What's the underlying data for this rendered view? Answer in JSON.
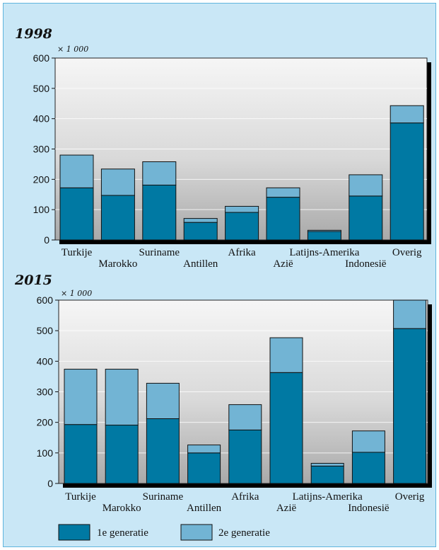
{
  "colors": {
    "first": "#0079a3",
    "second": "#72b4d4",
    "background": "#c9e7f6",
    "shadow": "#000000"
  },
  "legend": {
    "first_label": "1e generatie",
    "second_label": "2e generatie"
  },
  "chart_data": [
    {
      "type": "bar",
      "stacked": true,
      "title": "1998",
      "unit_label": "× 1 000",
      "ylim": [
        0,
        600
      ],
      "yticks": [
        0,
        100,
        200,
        300,
        400,
        500,
        600
      ],
      "categories": [
        "Turkije",
        "Marokko",
        "Suriname",
        "Antillen",
        "Afrika",
        "Azië",
        "Latijns-Amerika",
        "Indonesië",
        "Overig"
      ],
      "series": [
        {
          "name": "1e generatie",
          "values": [
            172,
            147,
            181,
            58,
            91,
            141,
            28,
            145,
            386
          ]
        },
        {
          "name": "2e generatie",
          "values": [
            108,
            87,
            77,
            13,
            20,
            31,
            4,
            70,
            57
          ]
        }
      ],
      "grid": true
    },
    {
      "type": "bar",
      "stacked": true,
      "title": "2015",
      "unit_label": "× 1 000",
      "ylim": [
        0,
        600
      ],
      "yticks": [
        0,
        100,
        200,
        300,
        400,
        500,
        600
      ],
      "categories": [
        "Turkije",
        "Marokko",
        "Suriname",
        "Antillen",
        "Afrika",
        "Azië",
        "Latijns-Amerika",
        "Indonesië",
        "Overig"
      ],
      "series": [
        {
          "name": "1e generatie",
          "values": [
            193,
            191,
            212,
            100,
            175,
            363,
            57,
            102,
            507
          ]
        },
        {
          "name": "2e generatie",
          "values": [
            181,
            183,
            116,
            26,
            83,
            114,
            9,
            70,
            93
          ]
        }
      ],
      "grid": true
    }
  ]
}
